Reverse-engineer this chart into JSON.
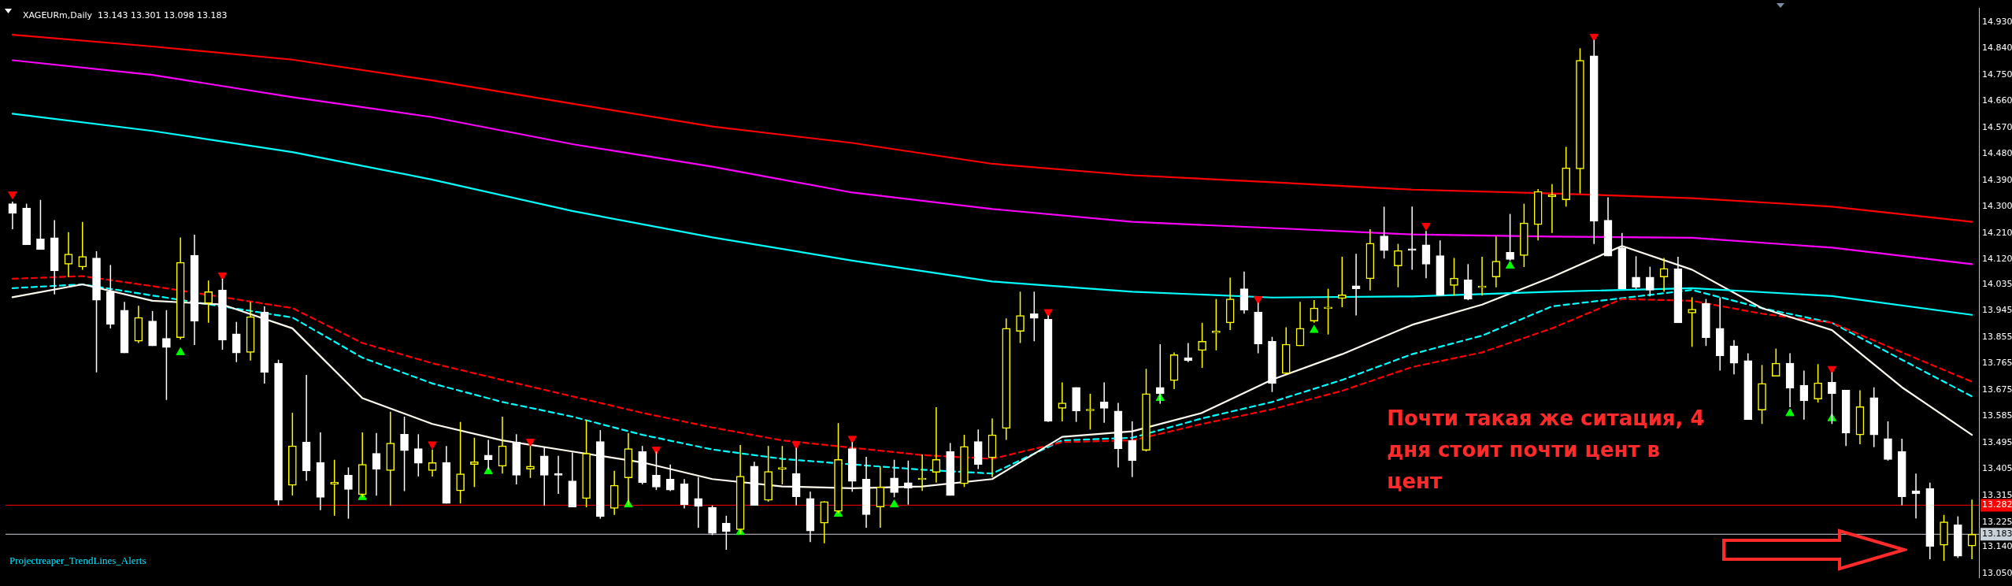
{
  "chart_data": {
    "type": "candlestick",
    "title": "XAGEURm,Daily  13.143 13.301 13.098 13.183",
    "categories": [
      null,
      null,
      null,
      null,
      null,
      null,
      null,
      null,
      null,
      null,
      null,
      null,
      null,
      null,
      null,
      null,
      null,
      null,
      null,
      null,
      null,
      null,
      null,
      null,
      null,
      null,
      null,
      null,
      null,
      null,
      null,
      null,
      null,
      null,
      null,
      null,
      null,
      null,
      null,
      null,
      null,
      null,
      null,
      null,
      null,
      null,
      null,
      null,
      null,
      null,
      null,
      null,
      null,
      null,
      null,
      null,
      null,
      null,
      null,
      null,
      null,
      null,
      null,
      null,
      null,
      null,
      null,
      null,
      null,
      null,
      null,
      null,
      null,
      null,
      null,
      null,
      null,
      null,
      null,
      null,
      null,
      null,
      null,
      null,
      null,
      null,
      null,
      null,
      null,
      null,
      null,
      null,
      null,
      null,
      null,
      null,
      null,
      null,
      null,
      null,
      null,
      null,
      null,
      null,
      null,
      null,
      null,
      null,
      null,
      null,
      null,
      null,
      null,
      null,
      null,
      null,
      null,
      null,
      null,
      null,
      null,
      null,
      null,
      null,
      null,
      null,
      null,
      null,
      null,
      null,
      null,
      null,
      null,
      null,
      null,
      null,
      null,
      null,
      null,
      null,
      null
    ],
    "colors": [
      "#ffffff",
      "#ffffff",
      "#ffffff",
      "#ffffff",
      "#ffff00",
      "#ffff00",
      "#ffffff",
      "#ffffff",
      "#ffffff",
      "#ffff00",
      "#ffffff",
      "#ffffff",
      "#ffff00",
      "#ffffff",
      "#ffff00",
      "#ffffff",
      "#ffffff",
      "#ffff00",
      "#ffffff",
      "#ffffff",
      "#ffff00",
      "#ffffff",
      "#ffffff",
      "#ffff00",
      "#ffffff",
      "#ffff00",
      "#ffffff",
      "#ffff00",
      "#ffffff",
      "#ffffff",
      "#ffff00",
      "#ffffff",
      "#ffff00",
      "#ffff00",
      "#ffffff",
      "#ffff00",
      "#ffffff",
      "#ffff00",
      "#ffffff",
      "#ffffff",
      "#ffffff",
      "#ffff00",
      "#ffffff",
      "#ffff00",
      "#ffff00",
      "#ffffff",
      "#ffffff",
      "#ffffff",
      "#ffffff",
      "#ffffff",
      "#ffffff",
      "#ffffff",
      "#ffff00",
      "#ffffff",
      "#ffff00",
      "#ffff00",
      "#ffffff",
      "#ffffff",
      "#ffff00",
      "#ffff00",
      "#ffffff",
      "#ffffff",
      "#ffff00",
      "#ffffff",
      "#ffffff",
      "#ffff00",
      "#ffff00",
      "#ffffff",
      "#ffff00",
      "#ffffff",
      "#ffff00",
      "#ffff00",
      "#ffff00",
      "#ffffff",
      "#ffffff",
      "#ffff00",
      "#ffffff",
      "#ffff00",
      "#ffffff",
      "#ffffff",
      "#ffffff",
      "#ffff00",
      "#ffffff",
      "#ffff00",
      "#ffffff",
      "#ffff00",
      "#ffff00",
      "#ffff00",
      "#ffffff",
      "#ffffff",
      "#ffffff",
      "#ffff00",
      "#ffff00",
      "#ffff00",
      "#ffff00",
      "#ffff00",
      "#ffffff",
      "#ffff00",
      "#ffffff",
      "#ffff00",
      "#ffffff",
      "#ffffff",
      "#ffffff",
      "#ffff00",
      "#ffffff",
      "#ffff00",
      "#ffff00",
      "#ffffff",
      "#ffff00",
      "#ffff00",
      "#ffff00",
      "#ffff00",
      "#ffff00",
      "#ffffff",
      "#ffffff",
      "#ffffff",
      "#ffffff",
      "#ffffff",
      "#ffff00",
      "#ffffff",
      "#ffff00",
      "#ffffff",
      "#ffffff",
      "#ffffff",
      "#ffffff",
      "#ffff00",
      "#ffff00",
      "#ffffff",
      "#ffffff",
      "#ffff00",
      "#ffffff",
      "#ffffff",
      "#ffff00",
      "#ffffff",
      "#ffffff",
      "#ffffff",
      "#ffffff",
      "#ffffff",
      "#ffff00",
      "#ffffff",
      "#ffff00"
    ],
    "ohlc": [
      [
        14.31,
        14.317,
        14.223,
        14.277
      ],
      [
        14.295,
        14.31,
        14.17,
        14.17
      ],
      [
        14.19,
        14.323,
        14.154,
        14.154
      ],
      [
        14.194,
        14.254,
        14.001,
        14.081
      ],
      [
        14.104,
        14.213,
        14.06,
        14.138
      ],
      [
        14.094,
        14.248,
        14.085,
        14.13
      ],
      [
        14.125,
        14.148,
        13.735,
        13.981
      ],
      [
        14.01,
        14.101,
        13.885,
        13.899
      ],
      [
        13.947,
        13.975,
        13.801,
        13.801
      ],
      [
        13.841,
        13.962,
        13.835,
        13.922
      ],
      [
        13.91,
        13.944,
        13.825,
        13.825
      ],
      [
        13.851,
        13.947,
        13.641,
        13.82
      ],
      [
        13.853,
        14.195,
        13.847,
        14.11
      ],
      [
        14.134,
        14.204,
        13.828,
        13.91
      ],
      [
        13.97,
        14.048,
        13.904,
        14.01
      ],
      [
        14.016,
        14.054,
        13.812,
        13.845
      ],
      [
        13.866,
        13.907,
        13.77,
        13.801
      ],
      [
        13.803,
        13.975,
        13.775,
        13.925
      ],
      [
        13.941,
        13.96,
        13.697,
        13.735
      ],
      [
        13.766,
        13.778,
        13.281,
        13.299
      ],
      [
        13.35,
        13.597,
        13.315,
        13.484
      ],
      [
        13.497,
        13.726,
        13.365,
        13.399
      ],
      [
        13.428,
        13.53,
        13.265,
        13.309
      ],
      [
        13.354,
        13.437,
        13.246,
        13.361
      ],
      [
        13.384,
        13.411,
        13.236,
        13.336
      ],
      [
        13.318,
        13.53,
        13.309,
        13.421
      ],
      [
        13.459,
        13.528,
        13.315,
        13.405
      ],
      [
        13.4,
        13.601,
        13.28,
        13.494
      ],
      [
        13.524,
        13.584,
        13.33,
        13.468
      ],
      [
        13.475,
        13.524,
        13.38,
        13.425
      ],
      [
        13.4,
        13.472,
        13.38,
        13.427
      ],
      [
        13.428,
        13.484,
        13.288,
        13.288
      ],
      [
        13.331,
        13.566,
        13.288,
        13.389
      ],
      [
        13.421,
        13.512,
        13.344,
        13.43
      ],
      [
        13.453,
        13.505,
        13.403,
        13.437
      ],
      [
        13.415,
        13.584,
        13.39,
        13.484
      ],
      [
        13.497,
        13.524,
        13.353,
        13.384
      ],
      [
        13.405,
        13.484,
        13.375,
        13.415
      ],
      [
        13.45,
        13.48,
        13.28,
        13.384
      ],
      [
        13.389,
        13.45,
        13.321,
        13.384
      ],
      [
        13.365,
        13.462,
        13.275,
        13.275
      ],
      [
        13.305,
        13.572,
        13.275,
        13.459
      ],
      [
        13.499,
        13.538,
        13.236,
        13.244
      ],
      [
        13.271,
        13.399,
        13.249,
        13.35
      ],
      [
        13.375,
        13.528,
        13.281,
        13.475
      ],
      [
        13.465,
        13.484,
        13.353,
        13.359
      ],
      [
        13.384,
        13.465,
        13.334,
        13.344
      ],
      [
        13.371,
        13.421,
        13.33,
        13.334
      ],
      [
        13.355,
        13.371,
        13.271,
        13.284
      ],
      [
        13.305,
        13.378,
        13.205,
        13.278
      ],
      [
        13.275,
        13.281,
        13.18,
        13.186
      ],
      [
        13.221,
        13.246,
        13.13,
        13.192
      ],
      [
        13.199,
        13.487,
        13.184,
        13.381
      ],
      [
        13.415,
        13.43,
        13.281,
        13.281
      ],
      [
        13.299,
        13.484,
        13.294,
        13.397
      ],
      [
        13.405,
        13.484,
        13.353,
        13.409
      ],
      [
        13.39,
        13.478,
        13.281,
        13.311
      ],
      [
        13.305,
        13.328,
        13.156,
        13.194
      ],
      [
        13.221,
        13.296,
        13.152,
        13.294
      ],
      [
        13.261,
        13.562,
        13.255,
        13.438
      ],
      [
        13.475,
        13.497,
        13.328,
        13.363
      ],
      [
        13.371,
        13.447,
        13.205,
        13.25
      ],
      [
        13.276,
        13.415,
        13.205,
        13.344
      ],
      [
        13.375,
        13.437,
        13.309,
        13.325
      ],
      [
        13.359,
        13.434,
        13.284,
        13.34
      ],
      [
        13.369,
        13.455,
        13.331,
        13.371
      ],
      [
        13.394,
        13.616,
        13.359,
        13.438
      ],
      [
        13.465,
        13.494,
        13.315,
        13.315
      ],
      [
        13.355,
        13.522,
        13.344,
        13.482
      ],
      [
        13.499,
        13.54,
        13.405,
        13.421
      ],
      [
        13.444,
        13.578,
        13.378,
        13.522
      ],
      [
        13.544,
        13.919,
        13.505,
        13.885
      ],
      [
        13.875,
        14.01,
        13.835,
        13.929
      ],
      [
        13.935,
        14.01,
        13.841,
        13.919
      ],
      [
        13.916,
        13.929,
        13.566,
        13.568
      ],
      [
        13.612,
        13.701,
        13.568,
        13.631
      ],
      [
        13.684,
        13.684,
        13.566,
        13.603
      ],
      [
        13.604,
        13.662,
        13.54,
        13.607
      ],
      [
        13.634,
        13.701,
        13.563,
        13.612
      ],
      [
        13.603,
        13.631,
        13.411,
        13.475
      ],
      [
        13.503,
        13.568,
        13.378,
        13.434
      ],
      [
        13.469,
        13.747,
        13.465,
        13.662
      ],
      [
        13.684,
        13.831,
        13.628,
        13.662
      ],
      [
        13.707,
        13.803,
        13.678,
        13.795
      ],
      [
        13.785,
        13.835,
        13.77,
        13.775
      ],
      [
        13.81,
        13.904,
        13.75,
        13.841
      ],
      [
        13.87,
        13.985,
        13.81,
        13.876
      ],
      [
        13.904,
        14.058,
        13.879,
        13.985
      ],
      [
        14.02,
        14.079,
        13.935,
        13.947
      ],
      [
        13.941,
        13.972,
        13.8,
        13.832
      ],
      [
        13.841,
        13.856,
        13.668,
        13.697
      ],
      [
        13.731,
        13.889,
        13.728,
        13.831
      ],
      [
        13.825,
        13.975,
        13.825,
        13.885
      ],
      [
        13.91,
        13.981,
        13.904,
        13.954
      ],
      [
        13.952,
        14.02,
        13.864,
        13.954
      ],
      [
        13.987,
        14.129,
        13.957,
        13.999
      ],
      [
        14.03,
        14.139,
        13.929,
        14.02
      ],
      [
        14.054,
        14.223,
        14.014,
        14.175
      ],
      [
        14.2,
        14.3,
        14.123,
        14.15
      ],
      [
        14.098,
        14.173,
        14.025,
        14.15
      ],
      [
        14.155,
        14.3,
        14.085,
        14.151
      ],
      [
        14.17,
        14.217,
        14.056,
        14.104
      ],
      [
        14.133,
        14.185,
        13.997,
        13.997
      ],
      [
        14.031,
        14.125,
        13.997,
        14.056
      ],
      [
        14.05,
        14.104,
        13.981,
        13.985
      ],
      [
        14.024,
        14.129,
        13.997,
        14.026
      ],
      [
        14.06,
        14.198,
        14.025,
        14.114
      ],
      [
        14.144,
        14.275,
        14.116,
        14.12
      ],
      [
        14.133,
        14.31,
        14.094,
        14.244
      ],
      [
        14.239,
        14.36,
        14.185,
        14.352
      ],
      [
        14.333,
        14.377,
        14.21,
        14.34
      ],
      [
        14.323,
        14.504,
        14.3,
        14.432
      ],
      [
        14.429,
        14.84,
        14.345,
        14.799
      ],
      [
        14.814,
        14.868,
        14.173,
        14.25
      ],
      [
        14.254,
        14.332,
        14.131,
        14.131
      ],
      [
        14.16,
        14.21,
        14.02,
        14.02
      ],
      [
        14.06,
        14.131,
        14.019,
        14.025
      ],
      [
        14.06,
        14.095,
        13.994,
        14.015
      ],
      [
        14.06,
        14.125,
        14.01,
        14.089
      ],
      [
        14.088,
        14.129,
        13.904,
        13.904
      ],
      [
        13.937,
        13.991,
        13.822,
        13.95
      ],
      [
        13.97,
        13.985,
        13.825,
        13.853
      ],
      [
        13.885,
        13.991,
        13.741,
        13.791
      ],
      [
        13.825,
        13.845,
        13.728,
        13.766
      ],
      [
        13.775,
        13.8,
        13.574,
        13.574
      ],
      [
        13.606,
        13.76,
        13.559,
        13.697
      ],
      [
        13.722,
        13.816,
        13.722,
        13.766
      ],
      [
        13.766,
        13.8,
        13.616,
        13.681
      ],
      [
        13.691,
        13.741,
        13.574,
        13.638
      ],
      [
        13.644,
        13.763,
        13.632,
        13.699
      ],
      [
        13.701,
        13.735,
        13.559,
        13.662
      ],
      [
        13.674,
        13.674,
        13.484,
        13.528
      ],
      [
        13.522,
        13.674,
        13.49,
        13.618
      ],
      [
        13.649,
        13.684,
        13.48,
        13.522
      ],
      [
        13.509,
        13.568,
        13.434,
        13.438
      ],
      [
        13.465,
        13.509,
        13.281,
        13.311
      ],
      [
        13.331,
        13.39,
        13.237,
        13.321
      ],
      [
        13.339,
        13.359,
        13.098,
        13.142
      ],
      [
        13.146,
        13.249,
        13.092,
        13.225
      ],
      [
        13.215,
        13.244,
        13.102,
        13.108
      ],
      [
        13.143,
        13.301,
        13.098,
        13.183
      ]
    ],
    "series": [
      {
        "type": "line",
        "color": "#ff0000",
        "values": [
          14.886,
          null,
          null,
          null,
          null,
          null,
          null,
          null,
          null,
          null,
          14.846,
          null,
          null,
          null,
          null,
          null,
          null,
          null,
          null,
          null,
          14.801,
          null,
          null,
          null,
          null,
          null,
          null,
          null,
          null,
          null,
          14.73,
          null,
          null,
          null,
          null,
          null,
          null,
          null,
          null,
          null,
          14.651,
          null,
          null,
          null,
          null,
          null,
          null,
          null,
          null,
          null,
          14.573,
          null,
          null,
          null,
          null,
          null,
          null,
          null,
          null,
          null,
          14.517,
          null,
          null,
          null,
          null,
          null,
          null,
          null,
          null,
          null,
          14.446,
          null,
          null,
          null,
          null,
          null,
          null,
          null,
          null,
          null,
          14.407,
          null,
          null,
          null,
          null,
          null,
          null,
          null,
          null,
          null,
          14.383,
          null,
          null,
          null,
          null,
          null,
          null,
          null,
          null,
          null,
          14.358,
          null,
          null,
          null,
          null,
          null,
          null,
          null,
          null,
          null,
          14.345,
          null,
          null,
          null,
          null,
          null,
          null,
          null,
          null,
          null,
          14.329,
          null,
          null,
          null,
          null,
          null,
          null,
          null,
          null,
          null,
          14.3,
          null,
          null,
          null,
          null,
          null,
          null,
          null,
          null,
          null,
          14.248
        ]
      },
      {
        "type": "line",
        "color": "#ff00ff",
        "values": [
          14.799,
          null,
          null,
          null,
          null,
          null,
          null,
          null,
          null,
          null,
          14.749,
          null,
          null,
          null,
          null,
          null,
          null,
          null,
          null,
          null,
          14.673,
          null,
          null,
          null,
          null,
          null,
          null,
          null,
          null,
          null,
          14.605,
          null,
          null,
          null,
          null,
          null,
          null,
          null,
          null,
          null,
          14.513,
          null,
          null,
          null,
          null,
          null,
          null,
          null,
          null,
          null,
          14.436,
          null,
          null,
          null,
          null,
          null,
          null,
          null,
          null,
          null,
          14.348,
          null,
          null,
          null,
          null,
          null,
          null,
          null,
          null,
          null,
          14.292,
          null,
          null,
          null,
          null,
          null,
          null,
          null,
          null,
          null,
          14.248,
          null,
          null,
          null,
          null,
          null,
          null,
          null,
          null,
          null,
          14.227,
          null,
          null,
          null,
          null,
          null,
          null,
          null,
          null,
          null,
          14.205,
          null,
          null,
          null,
          null,
          null,
          null,
          null,
          null,
          null,
          14.198,
          null,
          null,
          null,
          null,
          null,
          null,
          null,
          null,
          null,
          14.194,
          null,
          null,
          null,
          null,
          null,
          null,
          null,
          null,
          null,
          14.16,
          null,
          null,
          null,
          null,
          null,
          null,
          null,
          null,
          null,
          14.104
        ]
      },
      {
        "type": "line",
        "color": "#00ffff",
        "values": [
          14.617,
          null,
          null,
          null,
          null,
          null,
          null,
          null,
          null,
          null,
          14.558,
          null,
          null,
          null,
          null,
          null,
          null,
          null,
          null,
          null,
          14.486,
          null,
          null,
          null,
          null,
          null,
          null,
          null,
          null,
          null,
          14.392,
          null,
          null,
          null,
          null,
          null,
          null,
          null,
          null,
          null,
          14.285,
          null,
          null,
          null,
          null,
          null,
          null,
          null,
          null,
          null,
          14.195,
          null,
          null,
          null,
          null,
          null,
          null,
          null,
          null,
          null,
          14.116,
          null,
          null,
          null,
          null,
          null,
          null,
          null,
          null,
          null,
          14.045,
          null,
          null,
          null,
          null,
          null,
          null,
          null,
          null,
          null,
          14.01,
          null,
          null,
          null,
          null,
          null,
          null,
          null,
          null,
          null,
          13.99,
          null,
          null,
          null,
          null,
          null,
          null,
          null,
          null,
          null,
          13.994,
          null,
          null,
          null,
          null,
          null,
          null,
          null,
          null,
          null,
          14.01,
          null,
          null,
          null,
          null,
          null,
          null,
          null,
          null,
          null,
          14.022,
          null,
          null,
          null,
          null,
          null,
          null,
          null,
          null,
          null,
          13.995,
          null,
          null,
          null,
          null,
          null,
          null,
          null,
          null,
          null,
          13.931
        ]
      },
      {
        "type": "line",
        "color": "#fffaf0",
        "values": [
          13.991,
          null,
          null,
          null,
          null,
          14.035,
          null,
          null,
          null,
          null,
          13.979,
          null,
          null,
          null,
          null,
          13.966,
          null,
          null,
          null,
          null,
          13.885,
          null,
          null,
          null,
          null,
          13.647,
          null,
          null,
          null,
          null,
          13.559,
          null,
          null,
          null,
          null,
          13.503,
          null,
          null,
          null,
          null,
          13.465,
          null,
          null,
          null,
          null,
          13.428,
          null,
          null,
          null,
          null,
          13.371,
          null,
          null,
          null,
          null,
          13.346,
          null,
          null,
          null,
          null,
          13.34,
          null,
          null,
          null,
          null,
          13.346,
          null,
          null,
          null,
          null,
          13.371,
          null,
          null,
          null,
          null,
          13.515,
          null,
          null,
          null,
          null,
          13.534,
          null,
          null,
          null,
          null,
          13.597,
          null,
          null,
          null,
          null,
          13.71,
          null,
          null,
          null,
          null,
          13.797,
          null,
          null,
          null,
          null,
          13.897,
          null,
          null,
          null,
          null,
          13.966,
          null,
          null,
          null,
          null,
          14.06,
          null,
          null,
          null,
          null,
          14.166,
          null,
          null,
          null,
          null,
          14.085,
          null,
          null,
          null,
          null,
          13.954,
          null,
          null,
          null,
          null,
          13.879,
          null,
          null,
          null,
          null,
          13.684,
          null,
          null,
          null,
          null,
          13.522
        ]
      },
      {
        "type": "line",
        "color": "#ff0000",
        "line_style": "dashed",
        "values": [
          14.054,
          null,
          null,
          null,
          null,
          14.063,
          null,
          null,
          null,
          null,
          14.029,
          null,
          null,
          null,
          null,
          null,
          null,
          null,
          null,
          null,
          13.954,
          null,
          null,
          null,
          null,
          13.835,
          null,
          null,
          null,
          null,
          13.766,
          null,
          null,
          null,
          null,
          13.709,
          null,
          null,
          null,
          null,
          13.653,
          null,
          null,
          null,
          null,
          13.597,
          null,
          null,
          null,
          null,
          13.547,
          null,
          null,
          null,
          null,
          13.503,
          null,
          null,
          null,
          null,
          null,
          null,
          null,
          null,
          null,
          13.453,
          null,
          null,
          null,
          null,
          13.44,
          null,
          null,
          null,
          null,
          13.497,
          null,
          null,
          null,
          null,
          13.503,
          null,
          null,
          null,
          null,
          13.559,
          null,
          null,
          null,
          null,
          13.609,
          null,
          null,
          null,
          null,
          13.672,
          null,
          null,
          null,
          null,
          13.753,
          null,
          null,
          null,
          null,
          13.803,
          null,
          null,
          null,
          null,
          13.885,
          null,
          null,
          null,
          null,
          13.985,
          null,
          null,
          null,
          null,
          13.979,
          null,
          null,
          null,
          null,
          13.935,
          null,
          null,
          null,
          null,
          13.904,
          null,
          null,
          null,
          null,
          13.803,
          null,
          null,
          null,
          null,
          13.703
        ]
      },
      {
        "type": "line",
        "color": "#00ffff",
        "line_style": "dashed",
        "values": [
          14.022,
          null,
          null,
          null,
          null,
          14.035,
          null,
          null,
          null,
          null,
          13.997,
          null,
          null,
          null,
          null,
          null,
          null,
          null,
          null,
          null,
          13.922,
          null,
          null,
          null,
          null,
          13.785,
          null,
          null,
          null,
          null,
          13.697,
          null,
          null,
          null,
          null,
          13.634,
          null,
          null,
          null,
          null,
          13.584,
          null,
          null,
          null,
          null,
          13.522,
          null,
          null,
          null,
          null,
          13.472,
          null,
          null,
          null,
          null,
          13.44,
          null,
          null,
          null,
          null,
          13.421,
          null,
          null,
          null,
          null,
          13.403,
          null,
          null,
          null,
          null,
          13.39,
          null,
          null,
          null,
          null,
          13.503,
          null,
          null,
          null,
          null,
          13.512,
          null,
          null,
          null,
          null,
          13.578,
          null,
          null,
          null,
          null,
          13.634,
          null,
          null,
          null,
          null,
          13.709,
          null,
          null,
          null,
          null,
          13.797,
          null,
          null,
          null,
          null,
          13.86,
          null,
          null,
          null,
          null,
          13.96,
          null,
          null,
          null,
          null,
          null,
          null,
          null,
          null,
          null,
          14.016,
          null,
          null,
          null,
          null,
          13.954,
          null,
          null,
          null,
          null,
          13.904,
          null,
          null,
          null,
          null,
          13.778,
          null,
          null,
          null,
          null,
          13.653
        ]
      },
      {
        "type": "scatter",
        "color": "#ff0000",
        "marker": "triangle",
        "values": [
          14.342,
          null,
          null,
          null,
          null,
          null,
          null,
          null,
          null,
          null,
          null,
          null,
          null,
          null,
          null,
          14.066,
          null,
          null,
          null,
          null,
          null,
          null,
          null,
          null,
          null,
          null,
          null,
          null,
          null,
          null,
          13.49,
          null,
          null,
          null,
          null,
          null,
          null,
          13.499,
          null,
          null,
          null,
          null,
          null,
          null,
          null,
          null,
          13.472,
          null,
          null,
          null,
          null,
          null,
          null,
          null,
          null,
          null,
          13.49,
          null,
          null,
          null,
          13.509,
          null,
          null,
          null,
          null,
          null,
          null,
          null,
          null,
          null,
          null,
          null,
          null,
          null,
          13.941,
          null,
          null,
          null,
          null,
          null,
          null,
          null,
          null,
          null,
          null,
          null,
          null,
          null,
          null,
          13.985,
          null,
          null,
          null,
          null,
          null,
          null,
          null,
          null,
          null,
          null,
          null,
          14.235,
          null,
          null,
          null,
          null,
          null,
          null,
          null,
          null,
          null,
          null,
          null,
          14.88,
          null,
          null,
          null,
          null,
          null,
          null,
          null,
          null,
          null,
          null,
          null,
          null,
          null,
          null,
          null,
          null,
          13.747,
          null,
          null,
          null,
          null,
          null,
          null,
          null,
          null,
          null,
          null
        ]
      },
      {
        "type": "scatter",
        "color": "#00ff00",
        "marker": "triangle",
        "values": [
          null,
          null,
          null,
          null,
          null,
          null,
          null,
          null,
          null,
          null,
          null,
          null,
          13.803,
          null,
          null,
          null,
          null,
          null,
          null,
          null,
          null,
          null,
          null,
          null,
          null,
          13.309,
          null,
          null,
          null,
          null,
          null,
          null,
          null,
          null,
          13.397,
          null,
          null,
          null,
          null,
          null,
          null,
          null,
          null,
          null,
          13.284,
          null,
          null,
          null,
          null,
          null,
          null,
          null,
          13.19,
          null,
          null,
          null,
          null,
          null,
          null,
          13.252,
          null,
          null,
          null,
          13.284,
          null,
          null,
          null,
          null,
          null,
          null,
          null,
          null,
          null,
          null,
          null,
          null,
          null,
          null,
          null,
          null,
          null,
          null,
          13.647,
          null,
          null,
          null,
          null,
          null,
          null,
          null,
          null,
          null,
          null,
          13.879,
          null,
          null,
          null,
          null,
          null,
          null,
          null,
          null,
          null,
          null,
          null,
          null,
          null,
          14.098,
          null,
          null,
          null,
          null,
          null,
          null,
          null,
          null,
          null,
          null,
          null,
          null,
          null,
          null,
          null,
          null,
          null,
          null,
          null,
          13.595,
          null,
          null,
          13.578,
          null,
          null,
          null,
          null,
          null,
          null,
          null,
          null,
          null,
          null
        ]
      }
    ],
    "ylim": [
      13.035,
      14.976
    ],
    "yticks": [
      {
        "value": 14.93,
        "label": "14.930"
      },
      {
        "value": 14.84,
        "label": "14.840"
      },
      {
        "value": 14.75,
        "label": "14.750"
      },
      {
        "value": 14.66,
        "label": "14.660"
      },
      {
        "value": 14.57,
        "label": "14.570"
      },
      {
        "value": 14.48,
        "label": "14.480"
      },
      {
        "value": 14.39,
        "label": "14.390"
      },
      {
        "value": 14.3,
        "label": "14.300"
      },
      {
        "value": 14.21,
        "label": "14.210"
      },
      {
        "value": 14.12,
        "label": "14.120"
      },
      {
        "value": 14.035,
        "label": "14.035"
      },
      {
        "value": 13.945,
        "label": "13.945"
      },
      {
        "value": 13.855,
        "label": "13.855"
      },
      {
        "value": 13.765,
        "label": "13.765"
      },
      {
        "value": 13.675,
        "label": "13.675"
      },
      {
        "value": 13.585,
        "label": "13.585"
      },
      {
        "value": 13.495,
        "label": "13.495"
      },
      {
        "value": 13.405,
        "label": "13.405"
      },
      {
        "value": 13.315,
        "label": "13.315"
      },
      {
        "value": 13.225,
        "label": "13.225"
      },
      {
        "value": 13.14,
        "label": "13.140"
      },
      {
        "value": 13.05,
        "label": "13.050"
      }
    ],
    "tick_labels": "y",
    "ref_lines": [
      {
        "axis": "y",
        "value": 13.282,
        "label": "13.282",
        "color": "#ff0000"
      },
      {
        "axis": "y",
        "value": 13.183,
        "label": "13.183",
        "color": "#c8d0d8"
      }
    ],
    "annotations": [
      "Почти такая же ситация, 4 дня стоит почти цент в цент",
      "Projectreaper_TrendLines_Alerts"
    ]
  }
}
